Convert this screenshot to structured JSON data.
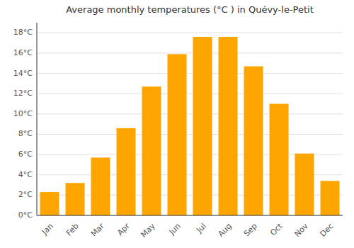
{
  "chart_data": {
    "type": "bar",
    "title": "Average monthly temperatures (°C ) in Quévy-le-Petit",
    "categories": [
      "Jan",
      "Feb",
      "Mar",
      "Apr",
      "May",
      "Jun",
      "Jul",
      "Aug",
      "Sep",
      "Oct",
      "Nov",
      "Dec"
    ],
    "values": [
      2.3,
      3.2,
      5.7,
      8.6,
      12.7,
      15.9,
      17.6,
      17.6,
      14.7,
      11.0,
      6.1,
      3.4
    ],
    "color": "#FFA500",
    "ylim": [
      0,
      19
    ],
    "yticks": [
      {
        "value": 0,
        "label": "0°C"
      },
      {
        "value": 2,
        "label": "2°C"
      },
      {
        "value": 4,
        "label": "4°C"
      },
      {
        "value": 6,
        "label": "6°C"
      },
      {
        "value": 8,
        "label": "8°C"
      },
      {
        "value": 10,
        "label": "10°C"
      },
      {
        "value": 12,
        "label": "12°C"
      },
      {
        "value": 14,
        "label": "14°C"
      },
      {
        "value": 16,
        "label": "16°C"
      },
      {
        "value": 18,
        "label": "18°C"
      }
    ],
    "grid": true
  }
}
